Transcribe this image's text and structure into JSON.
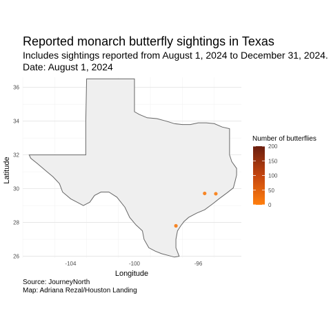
{
  "chart_data": {
    "type": "scatter",
    "title": "Reported monarch butterfly sightings in Texas",
    "subtitle_lines": [
      "Includes sightings reported from August 1, 2024 to December 31, 2024.",
      "Date: August  1, 2024"
    ],
    "xlabel": "Longitude",
    "ylabel": "Latitude",
    "xlim": [
      -107,
      -93.3
    ],
    "ylim": [
      25.9,
      36.6
    ],
    "xticks": [
      -104,
      -100,
      -96
    ],
    "xtick_labels": [
      "-104",
      "-100",
      "-96"
    ],
    "yticks": [
      26,
      28,
      30,
      32,
      34,
      36
    ],
    "ytick_labels": [
      "26",
      "28",
      "30",
      "32",
      "34",
      "36"
    ],
    "grid": true,
    "points": [
      {
        "lon": -95.6,
        "lat": 29.72,
        "count": 10
      },
      {
        "lon": -94.9,
        "lat": 29.7,
        "count": 8
      },
      {
        "lon": -97.4,
        "lat": 27.8,
        "count": 12
      }
    ],
    "legend": {
      "title": "Number of butterflies",
      "placement": "right",
      "breaks": [
        0,
        50,
        100,
        150,
        200
      ],
      "break_labels": [
        "0",
        "50",
        "100",
        "150",
        "200"
      ],
      "range": [
        0,
        200
      ],
      "color_low": "#ff7f0e",
      "color_high": "#6b1d0e"
    },
    "state_fill": "#efefef",
    "state_stroke": "#666666",
    "caption_lines": [
      "Source: JourneyNorth",
      "Map: Adriana Rezal/Houston Landing"
    ]
  }
}
